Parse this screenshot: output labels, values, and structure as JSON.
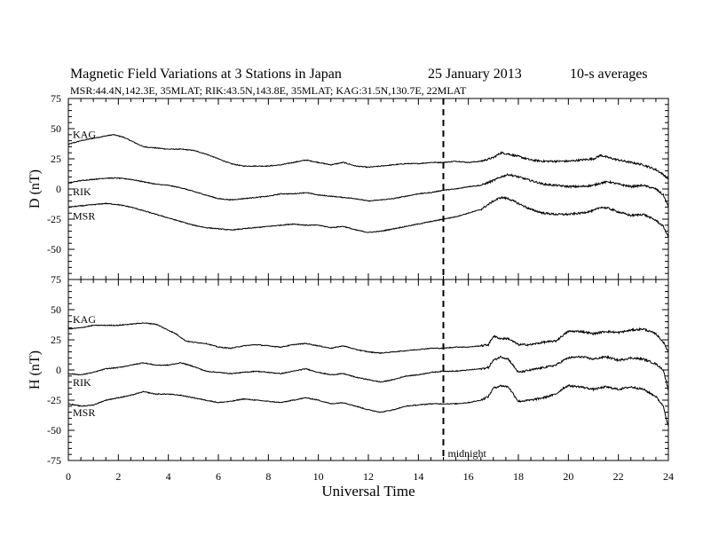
{
  "header": {
    "title": "Magnetic Field Variations at 3 Stations in Japan",
    "date": "25 January 2013",
    "averaging": "10-s averages",
    "stations_line": "MSR:44.4N,142.3E, 35MLAT;  RIK:43.5N,143.8E, 35MLAT;  KAG:31.5N,130.7E, 22MLAT"
  },
  "chart_data": [
    {
      "type": "line",
      "panel": "D",
      "ylabel": "D (nT)",
      "ylim": [
        -75,
        75
      ],
      "yticks": [
        -75,
        -50,
        -25,
        0,
        25,
        50,
        75
      ],
      "xlim": [
        0,
        24
      ],
      "series": [
        {
          "name": "KAG",
          "x": [
            0,
            0.5,
            1,
            1.5,
            1.8,
            2.2,
            2.6,
            3,
            3.5,
            4,
            4.5,
            5,
            5.5,
            6,
            6.5,
            7,
            7.5,
            8,
            8.5,
            9,
            9.5,
            10,
            10.5,
            11,
            11.5,
            12,
            12.5,
            13,
            13.5,
            14,
            14.5,
            15,
            15.5,
            16,
            16.5,
            17,
            17.3,
            17.6,
            18,
            18.5,
            19,
            19.5,
            20,
            20.5,
            21,
            21.3,
            21.6,
            22,
            22.5,
            23,
            23.5,
            23.8,
            24
          ],
          "y": [
            37,
            40,
            42,
            44,
            45,
            43,
            39,
            35,
            34,
            33,
            33,
            32,
            29,
            25,
            21,
            19,
            19,
            19,
            20,
            22,
            24,
            22,
            20,
            22,
            19,
            18,
            19,
            20,
            21,
            21,
            22,
            22,
            23,
            22,
            23,
            26,
            30,
            29,
            27,
            24,
            23,
            23,
            23,
            24,
            25,
            28,
            26,
            24,
            22,
            20,
            16,
            12,
            8
          ]
        },
        {
          "name": "RIK",
          "x": [
            0,
            0.5,
            1,
            1.5,
            2,
            2.5,
            3,
            3.5,
            4,
            4.5,
            5,
            5.5,
            6,
            6.5,
            7,
            7.5,
            8,
            8.5,
            9,
            9.5,
            10,
            10.5,
            11,
            11.5,
            12,
            12.5,
            13,
            13.5,
            14,
            14.5,
            15,
            15.5,
            16,
            16.5,
            17,
            17.3,
            17.6,
            18,
            18.5,
            19,
            19.5,
            20,
            20.5,
            21,
            21.3,
            21.6,
            22,
            22.5,
            23,
            23.5,
            23.8,
            24
          ],
          "y": [
            5,
            7,
            8,
            9,
            9,
            8,
            6,
            4,
            3,
            1,
            -2,
            -5,
            -8,
            -9,
            -8,
            -7,
            -6,
            -4,
            -4,
            -3,
            -5,
            -6,
            -7,
            -8,
            -10,
            -9,
            -8,
            -6,
            -4,
            -3,
            -1,
            0,
            2,
            3,
            7,
            10,
            12,
            10,
            7,
            4,
            3,
            2,
            2,
            3,
            5,
            6,
            4,
            2,
            3,
            0,
            -5,
            -15
          ]
        },
        {
          "name": "MSR",
          "x": [
            0,
            0.5,
            1,
            1.5,
            2,
            2.5,
            3,
            3.5,
            4,
            4.5,
            5,
            5.5,
            6,
            6.5,
            7,
            7.5,
            8,
            8.5,
            9,
            9.5,
            10,
            10.5,
            11,
            11.5,
            12,
            12.5,
            13,
            13.5,
            14,
            14.5,
            15,
            15.5,
            16,
            16.5,
            17,
            17.3,
            17.6,
            18,
            18.5,
            19,
            19.5,
            20,
            20.5,
            21,
            21.3,
            21.6,
            22,
            22.5,
            23,
            23.5,
            23.8,
            24
          ],
          "y": [
            -15,
            -14,
            -13,
            -12,
            -13,
            -15,
            -18,
            -21,
            -24,
            -27,
            -30,
            -32,
            -33,
            -34,
            -33,
            -32,
            -31,
            -30,
            -29,
            -30,
            -30,
            -32,
            -31,
            -34,
            -36,
            -35,
            -33,
            -31,
            -29,
            -27,
            -25,
            -23,
            -20,
            -17,
            -10,
            -7,
            -8,
            -12,
            -17,
            -20,
            -21,
            -21,
            -20,
            -18,
            -15,
            -16,
            -19,
            -22,
            -21,
            -26,
            -31,
            -40
          ]
        }
      ]
    },
    {
      "type": "line",
      "panel": "H",
      "ylabel": "H (nT)",
      "ylim": [
        -75,
        75
      ],
      "yticks": [
        -75,
        -50,
        -25,
        0,
        25,
        50,
        75
      ],
      "xlim": [
        0,
        24
      ],
      "xticks": [
        0,
        2,
        4,
        6,
        8,
        10,
        12,
        14,
        16,
        18,
        20,
        22,
        24
      ],
      "xlabel": "Universal Time",
      "series": [
        {
          "name": "KAG",
          "x": [
            0,
            0.5,
            1,
            1.5,
            2,
            2.5,
            3,
            3.5,
            4,
            4.3,
            4.7,
            5,
            5.5,
            6,
            6.5,
            7,
            7.5,
            8,
            8.5,
            9,
            9.5,
            10,
            10.5,
            11,
            11.5,
            12,
            12.5,
            13,
            13.5,
            14,
            14.5,
            15,
            15.5,
            16,
            16.5,
            16.8,
            17,
            17.3,
            17.6,
            18,
            18.5,
            19,
            19.5,
            19.8,
            20,
            20.5,
            21,
            21.5,
            22,
            22.5,
            23,
            23.5,
            23.8,
            24
          ],
          "y": [
            34,
            35,
            37,
            37,
            37,
            38,
            39,
            38,
            33,
            30,
            24,
            23,
            22,
            19,
            18,
            20,
            21,
            20,
            19,
            21,
            22,
            20,
            18,
            20,
            17,
            15,
            14,
            15,
            16,
            17,
            18,
            18,
            19,
            19,
            20,
            21,
            28,
            26,
            26,
            21,
            21,
            23,
            24,
            29,
            32,
            32,
            30,
            32,
            31,
            33,
            34,
            30,
            23,
            15
          ]
        },
        {
          "name": "RIK",
          "x": [
            0,
            0.5,
            1,
            1.5,
            2,
            2.5,
            3,
            3.5,
            4,
            4.5,
            5,
            5.5,
            6,
            6.5,
            7,
            7.5,
            8,
            8.5,
            9,
            9.5,
            10,
            10.5,
            11,
            11.5,
            12,
            12.5,
            13,
            13.5,
            14,
            14.5,
            15,
            15.5,
            16,
            16.5,
            16.8,
            17,
            17.3,
            17.6,
            18,
            18.5,
            19,
            19.5,
            19.8,
            20,
            20.5,
            21,
            21.5,
            22,
            22.5,
            23,
            23.5,
            23.8,
            24
          ],
          "y": [
            -3,
            -4,
            -2,
            1,
            2,
            4,
            6,
            4,
            4,
            6,
            3,
            -1,
            -2,
            -3,
            -2,
            -1,
            -2,
            -3,
            -1,
            1,
            -2,
            -4,
            -3,
            -6,
            -8,
            -10,
            -8,
            -5,
            -4,
            -2,
            -1,
            -1,
            0,
            1,
            2,
            8,
            11,
            9,
            -2,
            0,
            2,
            4,
            8,
            10,
            11,
            9,
            11,
            8,
            10,
            9,
            5,
            0,
            -17
          ]
        },
        {
          "name": "MSR",
          "x": [
            0,
            0.5,
            1,
            1.5,
            2,
            2.5,
            3,
            3.5,
            4,
            4.5,
            5,
            5.5,
            6,
            6.5,
            7,
            7.5,
            8,
            8.5,
            9,
            9.5,
            10,
            10.5,
            11,
            11.5,
            12,
            12.5,
            13,
            13.5,
            14,
            14.5,
            15,
            15.5,
            16,
            16.5,
            16.8,
            17,
            17.3,
            17.6,
            18,
            18.5,
            19,
            19.5,
            19.8,
            20,
            20.5,
            21,
            21.5,
            22,
            22.5,
            23,
            23.5,
            23.8,
            24
          ],
          "y": [
            -28,
            -30,
            -29,
            -25,
            -23,
            -21,
            -18,
            -20,
            -20,
            -21,
            -23,
            -25,
            -27,
            -26,
            -24,
            -25,
            -26,
            -27,
            -25,
            -23,
            -25,
            -28,
            -27,
            -30,
            -33,
            -35,
            -33,
            -30,
            -29,
            -28,
            -28,
            -28,
            -27,
            -25,
            -22,
            -15,
            -13,
            -14,
            -26,
            -25,
            -23,
            -20,
            -15,
            -13,
            -14,
            -16,
            -14,
            -16,
            -14,
            -16,
            -22,
            -30,
            -47
          ]
        }
      ]
    }
  ],
  "annotation": {
    "x": 15,
    "label": "midnight"
  }
}
